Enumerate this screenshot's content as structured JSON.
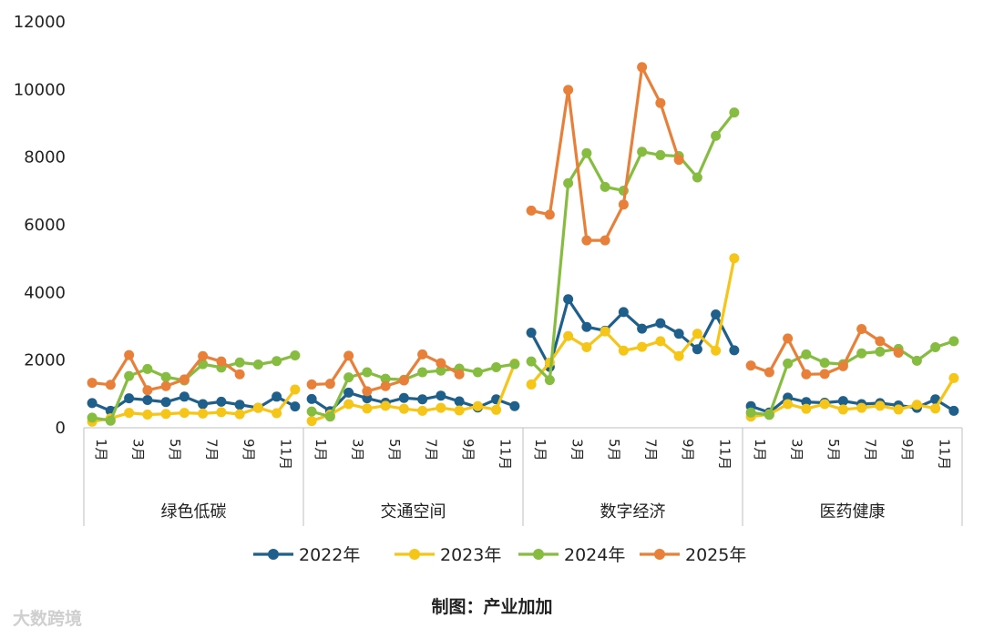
{
  "chart_data": {
    "type": "line",
    "y_ticks": [
      "0",
      "2000",
      "4000",
      "6000",
      "8000",
      "10000",
      "12000"
    ],
    "ylim": [
      0,
      12000
    ],
    "grid": false,
    "legend_position": "bottom",
    "month_ticks": [
      "1月",
      "3月",
      "5月",
      "7月",
      "9月",
      "11月"
    ],
    "groups": [
      "绿色低碳",
      "交通空间",
      "数字经济",
      "医药健康"
    ],
    "months_per_group": 12,
    "series": [
      {
        "name": "2022年",
        "color": "#1f5f8b",
        "groups": [
          [
            730,
            500,
            870,
            820,
            760,
            920,
            700,
            770,
            680,
            590,
            920,
            630
          ],
          [
            850,
            490,
            1040,
            870,
            740,
            880,
            840,
            950,
            780,
            600,
            840,
            640
          ],
          [
            2810,
            1800,
            3800,
            2980,
            2870,
            3420,
            2930,
            3090,
            2780,
            2320,
            3350,
            2290
          ],
          [
            640,
            450,
            890,
            760,
            740,
            790,
            700,
            730,
            660,
            590,
            840,
            500
          ]
        ]
      },
      {
        "name": "2023年",
        "color": "#f5c518",
        "groups": [
          [
            180,
            280,
            440,
            390,
            410,
            440,
            420,
            460,
            400,
            590,
            430,
            1130
          ],
          [
            200,
            390,
            700,
            570,
            650,
            560,
            500,
            590,
            510,
            640,
            530,
            1900
          ],
          [
            1280,
            1930,
            2710,
            2380,
            2850,
            2280,
            2390,
            2560,
            2120,
            2780,
            2280,
            5010
          ],
          [
            330,
            400,
            700,
            560,
            700,
            540,
            590,
            650,
            540,
            680,
            570,
            1470
          ]
        ]
      },
      {
        "name": "2024年",
        "color": "#86bc40",
        "groups": [
          [
            300,
            210,
            1530,
            1740,
            1500,
            1400,
            1880,
            1780,
            1930,
            1870,
            1970,
            2140
          ],
          [
            480,
            330,
            1490,
            1640,
            1450,
            1420,
            1640,
            1690,
            1750,
            1640,
            1790,
            1880
          ],
          [
            1960,
            1410,
            7230,
            8120,
            7120,
            7010,
            8160,
            8060,
            8030,
            7400,
            8630,
            9320
          ],
          [
            450,
            380,
            1900,
            2170,
            1920,
            1880,
            2200,
            2250,
            2330,
            1980,
            2380,
            2560
          ]
        ]
      },
      {
        "name": "2025年",
        "color": "#e8803a",
        "groups": [
          [
            1330,
            1270,
            2150,
            1110,
            1230,
            1430,
            2120,
            1960,
            1580,
            null,
            null,
            null
          ],
          [
            1280,
            1300,
            2130,
            1080,
            1230,
            1400,
            2170,
            1910,
            1580,
            null,
            null,
            null
          ],
          [
            6420,
            6300,
            9990,
            5540,
            5540,
            6600,
            10660,
            9600,
            7920,
            null,
            null,
            null
          ],
          [
            1840,
            1640,
            2640,
            1580,
            1590,
            1820,
            2920,
            2560,
            2220,
            null,
            null,
            null
          ]
        ]
      }
    ]
  },
  "caption": "制图：产业加加",
  "watermark": "大数跨境"
}
